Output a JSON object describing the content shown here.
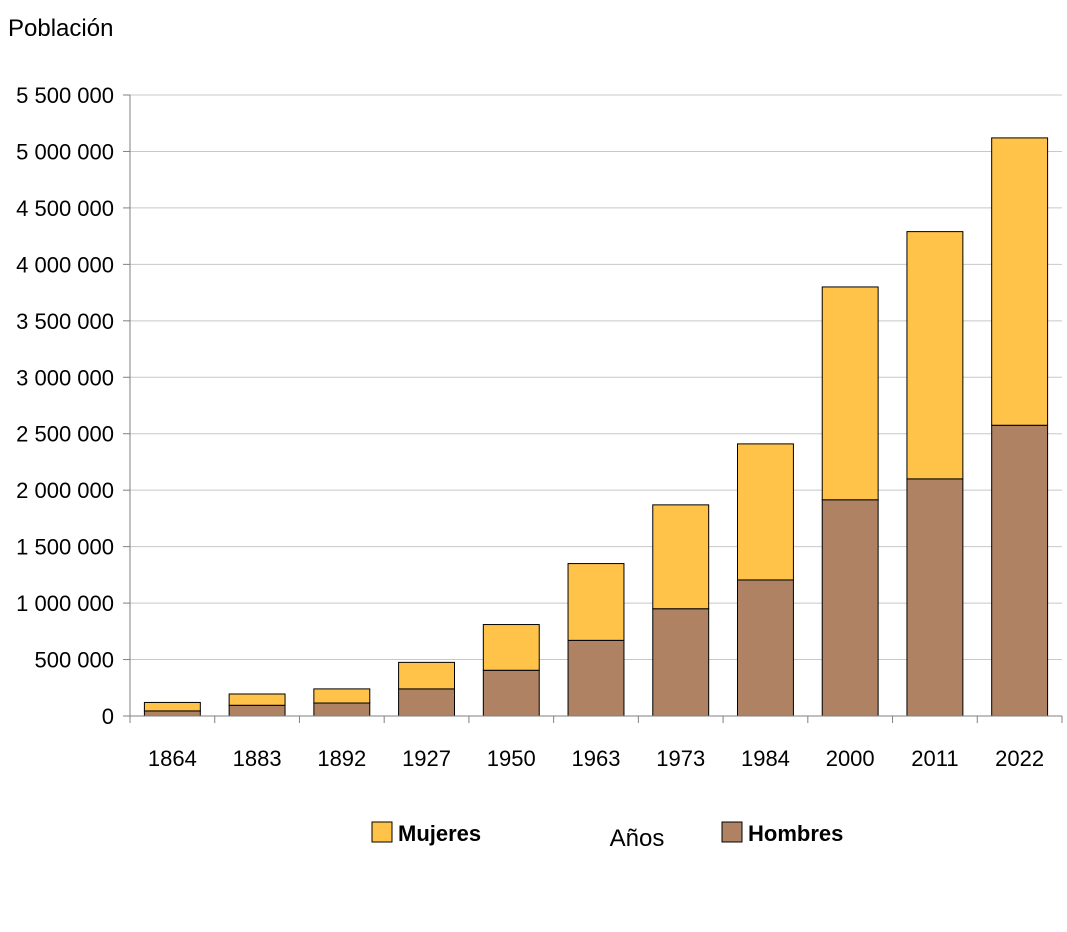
{
  "chart_data": {
    "type": "bar",
    "stacked": true,
    "title": "",
    "ylabel": "Población",
    "xlabel": "Años",
    "categories": [
      "1864",
      "1883",
      "1892",
      "1927",
      "1950",
      "1963",
      "1973",
      "1984",
      "2000",
      "2011",
      "2022"
    ],
    "series": [
      {
        "name": "Hombres",
        "color": "#ae8263",
        "values": [
          45000,
          95000,
          115000,
          240000,
          405000,
          670000,
          950000,
          1205000,
          1915000,
          2100000,
          2575000
        ]
      },
      {
        "name": "Mujeres",
        "color": "#ffc34a",
        "values": [
          75000,
          100000,
          125000,
          235000,
          405000,
          680000,
          920000,
          1205000,
          1885000,
          2190000,
          2545000
        ]
      }
    ],
    "ylim": [
      0,
      5500000
    ],
    "yticks": [
      "0",
      "500 000",
      "1 000 000",
      "1 500 000",
      "2 000 000",
      "2 500 000",
      "3 000 000",
      "3 500 000",
      "4 000 000",
      "4 500 000",
      "5 000 000",
      "5 500 000"
    ],
    "grid": true,
    "legend": {
      "position": "bottom",
      "items": [
        {
          "name": "Mujeres",
          "color": "#ffc34a"
        },
        {
          "name": "Hombres",
          "color": "#ae8263"
        }
      ]
    }
  }
}
